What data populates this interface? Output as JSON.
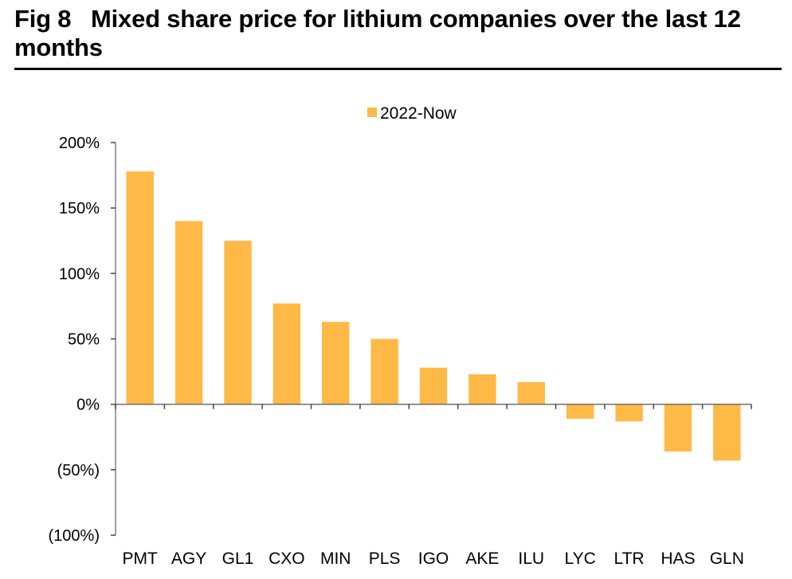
{
  "figure": {
    "number": "Fig 8",
    "title": "Mixed share price for lithium companies over the last 12 months"
  },
  "chart_data": {
    "type": "bar",
    "title": "Mixed share price for lithium companies over the last 12 months",
    "xlabel": "",
    "ylabel": "",
    "categories": [
      "PMT",
      "AGY",
      "GL1",
      "CXO",
      "MIN",
      "PLS",
      "IGO",
      "AKE",
      "ILU",
      "LYC",
      "LTR",
      "HAS",
      "GLN"
    ],
    "series": [
      {
        "name": "2022-Now",
        "color": "#FFB946",
        "values": [
          178,
          140,
          125,
          77,
          63,
          50,
          28,
          23,
          17,
          -11,
          -13,
          -36,
          -43
        ]
      }
    ],
    "ylim": [
      -100,
      200
    ],
    "yticks": [
      200,
      150,
      100,
      50,
      0,
      -50,
      -100
    ],
    "ytick_labels": [
      "200%",
      "150%",
      "100%",
      "50%",
      "0%",
      "(50%)",
      "(100%)"
    ],
    "value_unit": "percent",
    "grid": false,
    "legend": {
      "position": "top-center",
      "entries": [
        "2022-Now"
      ]
    }
  }
}
